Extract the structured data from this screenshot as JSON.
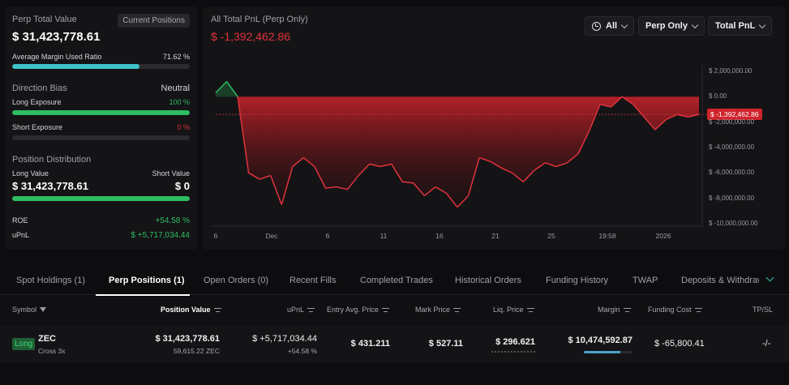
{
  "summary": {
    "title": "Perp Total Value",
    "current_positions_label": "Current Positions",
    "total_value": "$ 31,423,778.61",
    "margin_ratio_label": "Average Margin Used Ratio",
    "margin_ratio_value": "71.62 %",
    "margin_ratio_fraction": 0.7162,
    "direction_bias_label": "Direction Bias",
    "direction_bias_value": "Neutral",
    "long_exposure_label": "Long Exposure",
    "long_exposure_value": "100 %",
    "long_exposure_fraction": 1.0,
    "short_exposure_label": "Short Exposure",
    "short_exposure_value": "0 %",
    "short_exposure_fraction": 0.0,
    "position_distribution_label": "Position Distribution",
    "long_value_label": "Long Value",
    "short_value_label": "Short Value",
    "long_value": "$ 31,423,778.61",
    "short_value": "$ 0",
    "long_value_fraction": 1.0,
    "roe_label": "ROE",
    "roe_value": "+54.58 %",
    "upnl_label": "uPnL",
    "upnl_value": "$ +5,717,034.44"
  },
  "chart_header": {
    "title": "All Total PnL (Perp Only)",
    "value": "$ -1,392,462.86",
    "filters": {
      "range": "All",
      "scope": "Perp Only",
      "metric": "Total PnL"
    }
  },
  "chart_data": {
    "type": "area",
    "x_tick_labels": [
      "6",
      "Dec",
      "6",
      "11",
      "16",
      "21",
      "25",
      "19:58",
      "2026"
    ],
    "y_tick_labels": [
      "$ 2,000,000.00",
      "$ 0.00",
      "$ -2,000,000.00",
      "$ -4,000,000.00",
      "$ -6,000,000.00",
      "$ -8,000,000.00",
      "$ -10,000,000.00"
    ],
    "ylim": [
      -10000000,
      2000000
    ],
    "current_value": -1392462.86,
    "current_label": "$ -1,392,462.86",
    "values": [
      300000,
      1200000,
      0,
      -6000000,
      -6500000,
      -6200000,
      -8500000,
      -5500000,
      -4800000,
      -5500000,
      -7200000,
      -7100000,
      -7300000,
      -6200000,
      -5300000,
      -5500000,
      -5300000,
      -6700000,
      -6800000,
      -7800000,
      -7100000,
      -7600000,
      -8700000,
      -7800000,
      -4800000,
      -5100000,
      -5600000,
      -6000000,
      -6700000,
      -5800000,
      -5200000,
      -5500000,
      -5200000,
      -4500000,
      -2700000,
      -600000,
      -800000,
      0,
      -600000,
      -1600000,
      -2600000,
      -1800000,
      -1400000,
      -1600000,
      -1392463
    ]
  },
  "tabs": [
    {
      "label": "Spot Holdings (1)"
    },
    {
      "label": "Perp Positions (1)"
    },
    {
      "label": "Open Orders (0)"
    },
    {
      "label": "Recent Fills"
    },
    {
      "label": "Completed Trades"
    },
    {
      "label": "Historical Orders"
    },
    {
      "label": "Funding History"
    },
    {
      "label": "TWAP"
    },
    {
      "label": "Deposits & Withdraw"
    }
  ],
  "table": {
    "headers": {
      "symbol": "Symbol",
      "position_value": "Position Value",
      "upnl": "uPnL",
      "entry": "Entry Avg. Price",
      "mark": "Mark Price",
      "liq": "Liq. Price",
      "margin": "Margin",
      "funding": "Funding Cost",
      "tpsl": "TP/SL"
    },
    "row": {
      "side": "Long",
      "symbol": "ZEC",
      "leverage": "Cross 3x",
      "position_value": "$ 31,423,778.61",
      "position_size": "59,615.22 ZEC",
      "upnl": "$ +5,717,034.44",
      "upnl_pct": "+54.58 %",
      "entry": "$ 431.211",
      "mark": "$ 527.11",
      "liq": "$ 296.621",
      "margin": "$ 10,474,592.87",
      "margin_fraction": 0.75,
      "funding": "$ -65,800.41",
      "tpsl": "-/-"
    }
  },
  "colors": {
    "accent_green": "#2ebd62",
    "accent_red": "#e0333c",
    "accent_teal": "#2ec4b6"
  }
}
